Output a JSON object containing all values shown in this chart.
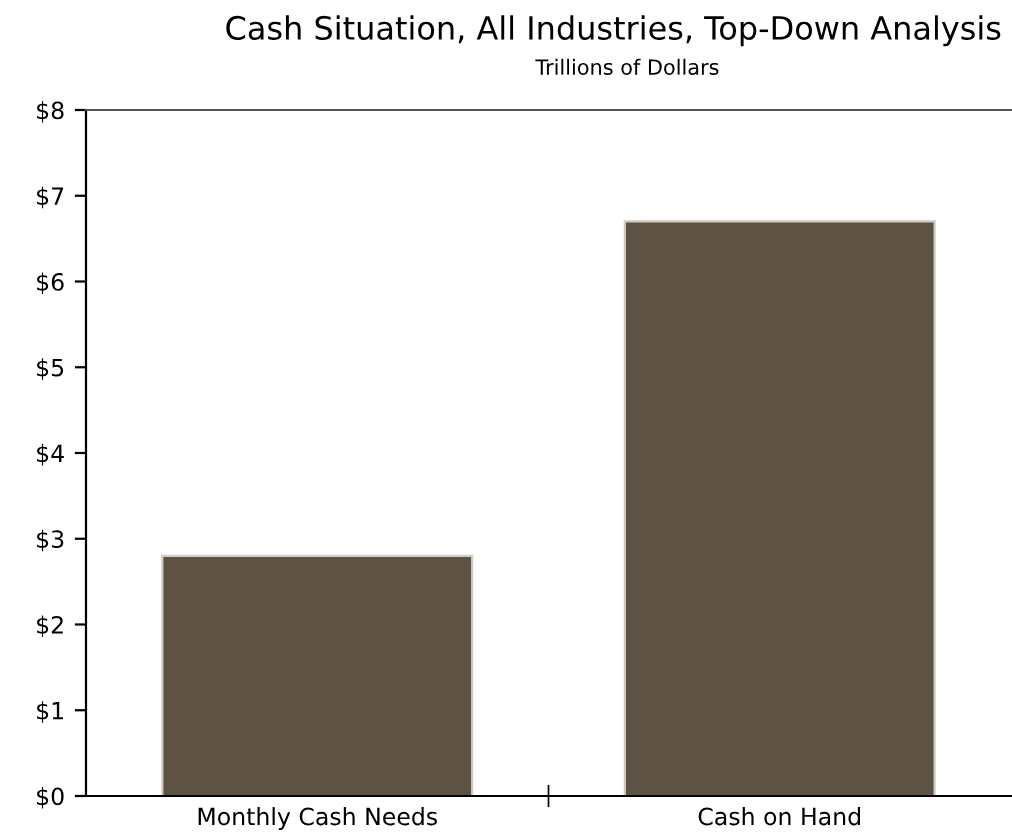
{
  "chart_data": {
    "type": "bar",
    "title": "Cash Situation, All Industries, Top-Down Analysis",
    "subtitle": "Trillions of Dollars",
    "categories": [
      "Monthly Cash Needs",
      "Cash on Hand"
    ],
    "values": [
      2.8,
      6.7
    ],
    "color": "#5e5245",
    "ylim": [
      0,
      8
    ],
    "yticks": [
      {
        "value": 0,
        "label": "$0"
      },
      {
        "value": 1,
        "label": "$1"
      },
      {
        "value": 2,
        "label": "$2"
      },
      {
        "value": 3,
        "label": "$3"
      },
      {
        "value": 4,
        "label": "$4"
      },
      {
        "value": 5,
        "label": "$5"
      },
      {
        "value": 6,
        "label": "$6"
      },
      {
        "value": 7,
        "label": "$7"
      },
      {
        "value": 8,
        "label": "$8"
      }
    ],
    "grid": false,
    "legend": false
  }
}
